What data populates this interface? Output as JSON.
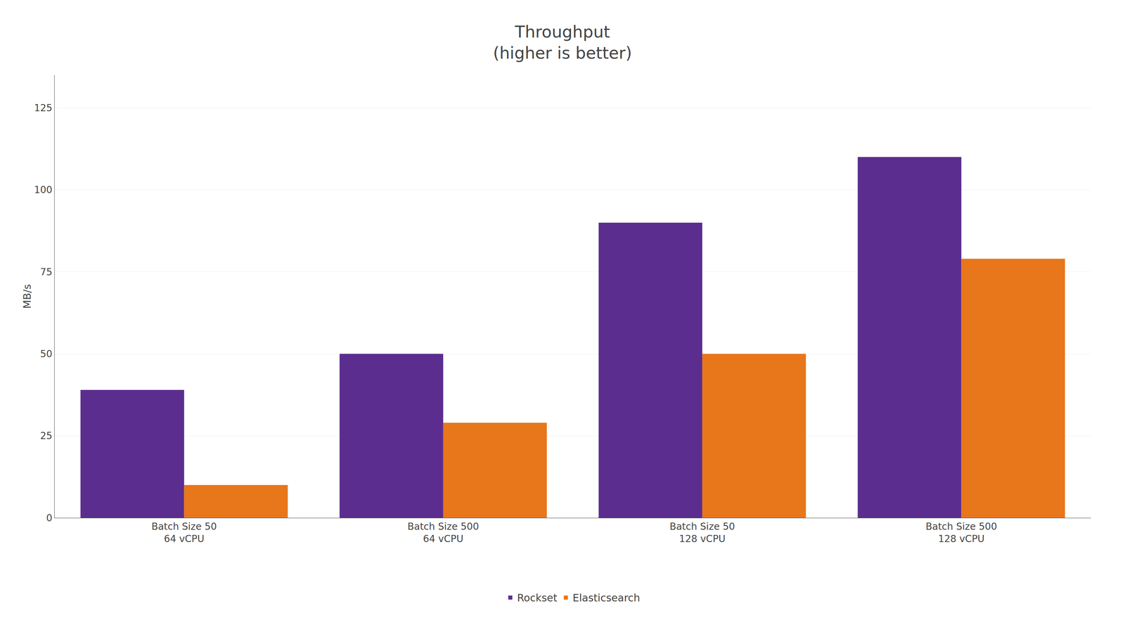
{
  "chart_data": {
    "type": "bar",
    "title": "Throughput\n(higher is better)",
    "ylabel": "MB/s",
    "categories": [
      "Batch Size 50\n64 vCPU",
      "Batch Size 500\n64 vCPU",
      "Batch Size 50\n128 vCPU",
      "Batch Size 500\n128 vCPU"
    ],
    "series": [
      {
        "name": "Rockset",
        "color": "#5B2D8E",
        "values": [
          39,
          50,
          90,
          110
        ]
      },
      {
        "name": "Elasticsearch",
        "color": "#E8761A",
        "values": [
          10,
          29,
          50,
          79
        ]
      }
    ],
    "ylim": [
      0,
      135
    ],
    "yticks": [
      0,
      25,
      50,
      75,
      100,
      125
    ],
    "grid": true,
    "legend": "bottom"
  }
}
